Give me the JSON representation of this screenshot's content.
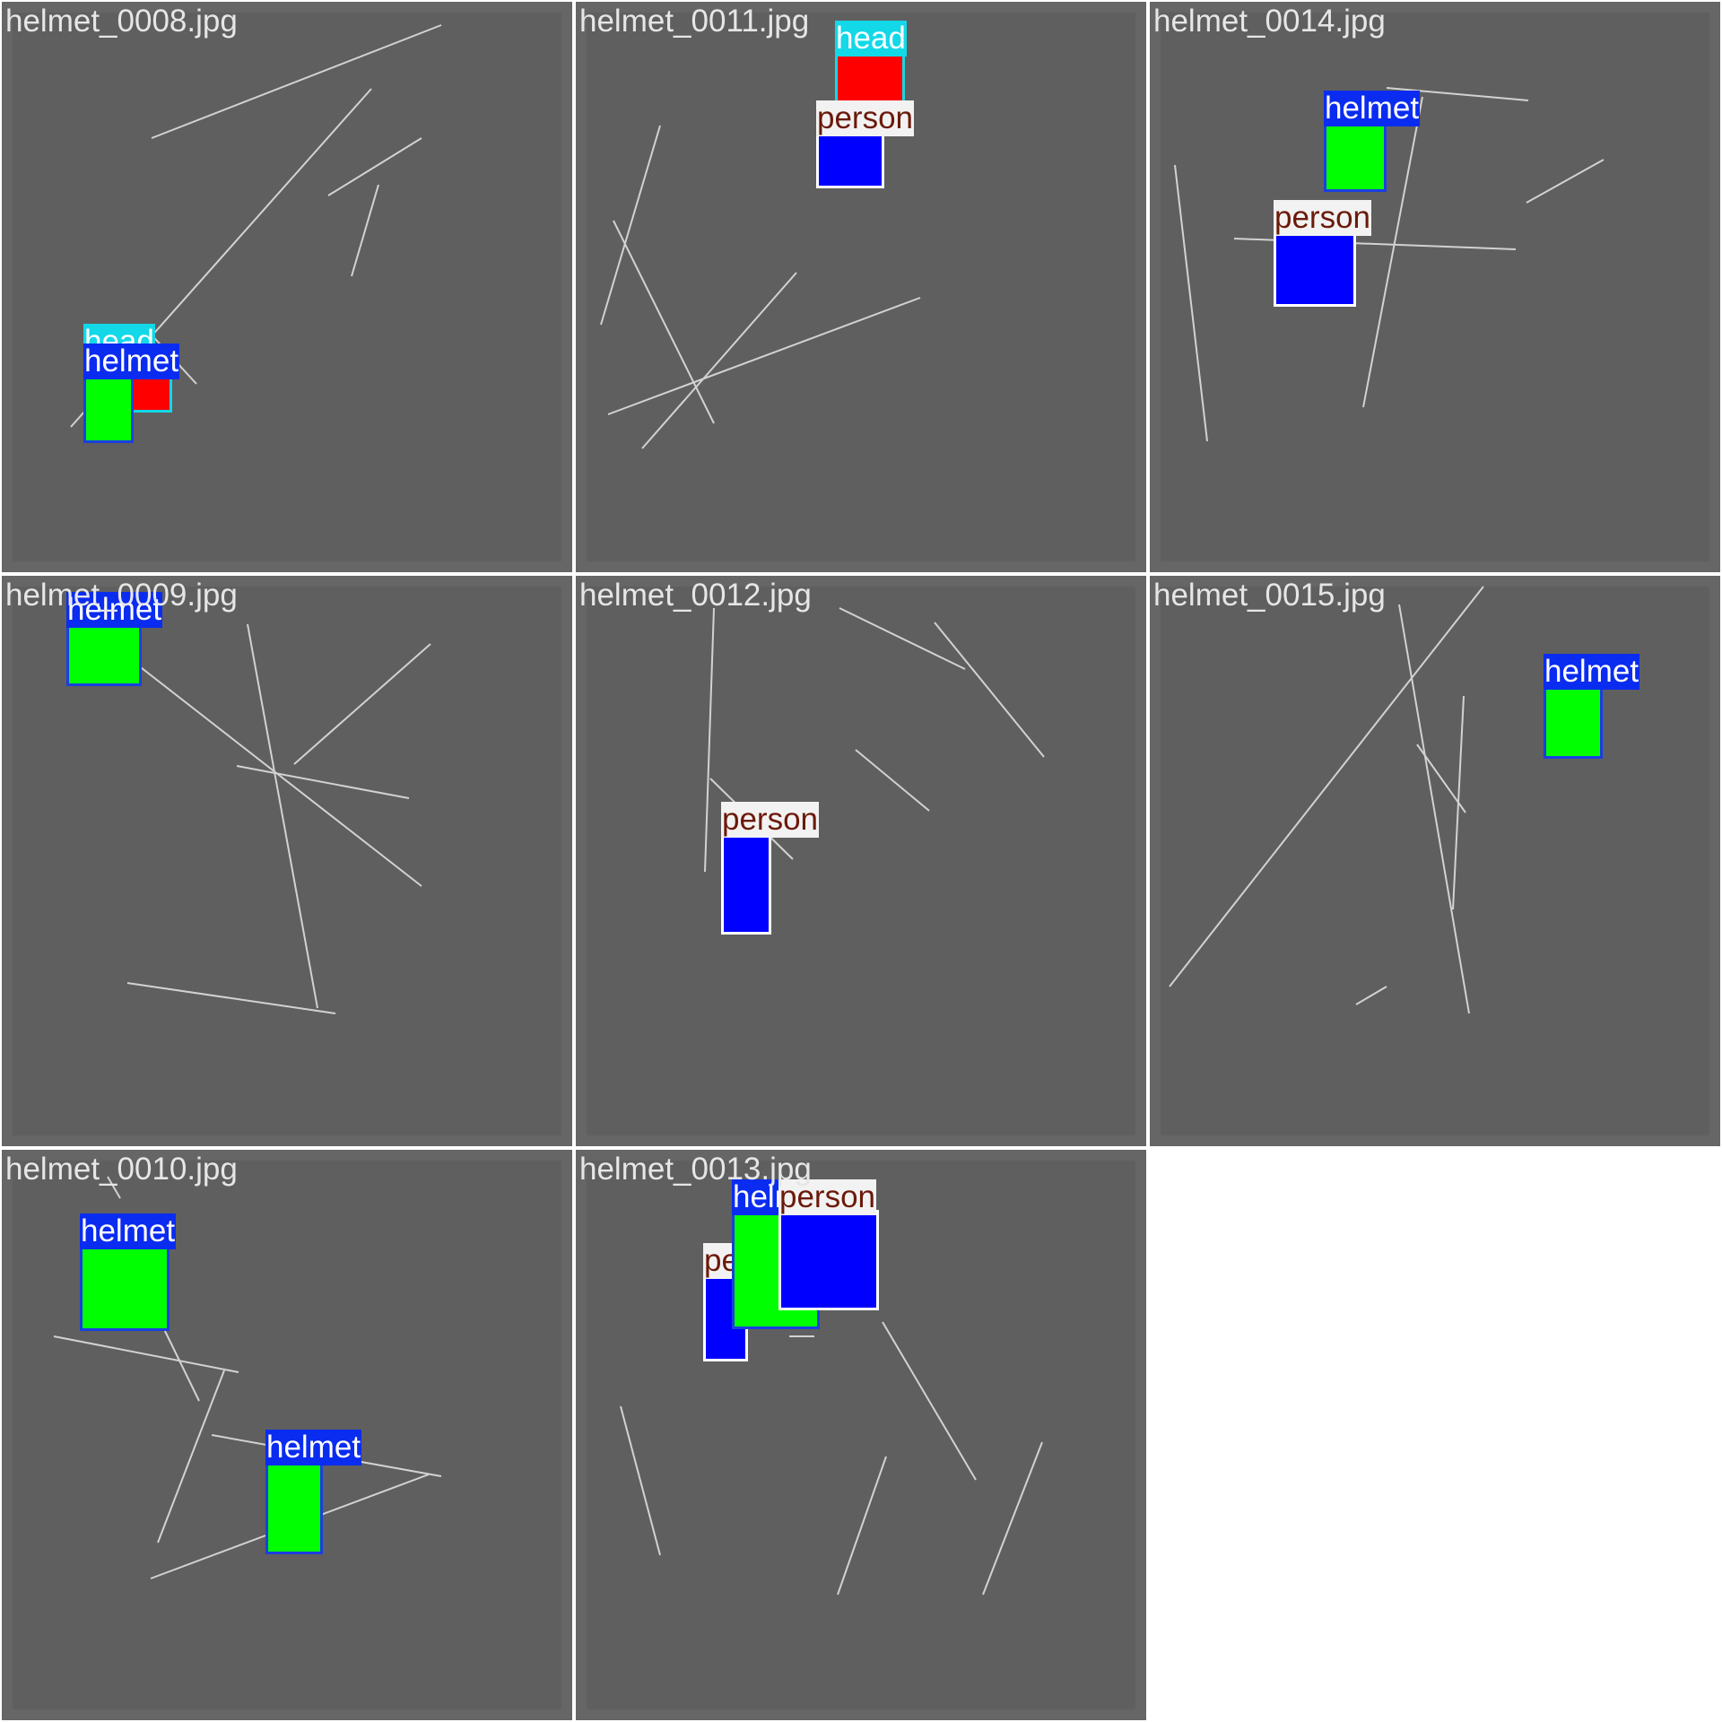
{
  "colors": {
    "tile_bg": "#666666",
    "inner_bg": "#5f5f5f",
    "line": "#d2d2d2",
    "caption": "#e6e6e6",
    "classes": {
      "helmet": {
        "tag_bg": "#0a2cf0",
        "tag_fg": "#ffffff",
        "border": "#1a3fe0",
        "fill": "#00ff00"
      },
      "person": {
        "tag_bg": "#f2f2f2",
        "tag_fg": "#6b1a0a",
        "border": "#ffffff",
        "fill": "#0000ff"
      },
      "head": {
        "tag_bg": "#12d8e8",
        "tag_fg": "#ffffff",
        "border": "#12d8e8",
        "fill": "#ff0000"
      }
    }
  },
  "tiles": [
    {
      "filename": "helmet_0008.jpg",
      "labels": [
        "head",
        "helmet"
      ]
    },
    {
      "filename": "helmet_0011.jpg",
      "labels": [
        "head",
        "person"
      ]
    },
    {
      "filename": "helmet_0014.jpg",
      "labels": [
        "helmet",
        "person"
      ]
    },
    {
      "filename": "helmet_0009.jpg",
      "labels": [
        "helmet"
      ]
    },
    {
      "filename": "helmet_0012.jpg",
      "labels": [
        "person"
      ]
    },
    {
      "filename": "helmet_0015.jpg",
      "labels": [
        "helmet"
      ]
    },
    {
      "filename": "helmet_0010.jpg",
      "labels": [
        "helmet",
        "helmet"
      ]
    },
    {
      "filename": "helmet_0013.jpg",
      "labels": [
        "person",
        "helmet",
        "person"
      ]
    }
  ]
}
